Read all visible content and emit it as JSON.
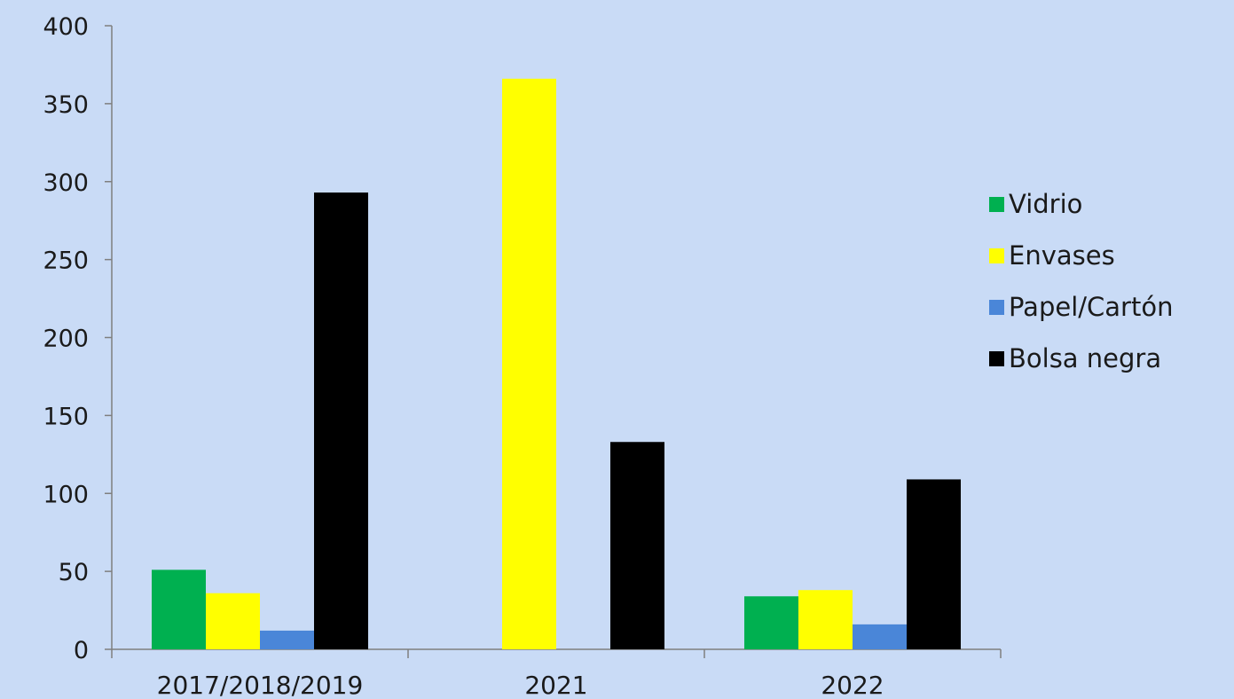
{
  "chart_data": {
    "type": "bar",
    "categories": [
      "2017/2018/2019",
      "2021",
      "2022"
    ],
    "series": [
      {
        "name": "Vidrio",
        "color": "#00b050",
        "values": [
          51,
          0,
          34
        ]
      },
      {
        "name": "Envases",
        "color": "#ffff00",
        "values": [
          36,
          366,
          38
        ]
      },
      {
        "name": "Papel/Cartón",
        "color": "#4a86d8",
        "values": [
          12,
          0,
          16
        ]
      },
      {
        "name": "Bolsa negra",
        "color": "#000000",
        "values": [
          293,
          133,
          109
        ]
      }
    ],
    "ylim": [
      0,
      400
    ],
    "yticks": [
      0,
      50,
      100,
      150,
      200,
      250,
      300,
      350,
      400
    ],
    "legend_position": "right",
    "grid": false,
    "title": "",
    "xlabel": "",
    "ylabel": ""
  }
}
